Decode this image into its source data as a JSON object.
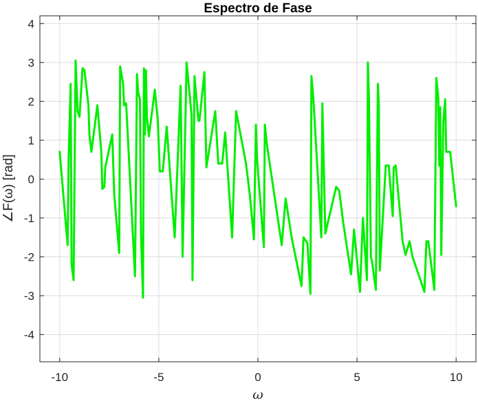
{
  "chart_data": {
    "type": "line",
    "title": "Espectro de Fase",
    "xlabel": "ω",
    "ylabel": "∠F(ω) [rad]",
    "xlim": [
      -11,
      11
    ],
    "ylim": [
      -4.7,
      4.2
    ],
    "xticks": [
      -10,
      -5,
      0,
      5,
      10
    ],
    "xtick_labels": [
      "-10",
      "-5",
      "0",
      "5",
      "10"
    ],
    "yticks": [
      -4,
      -3,
      -2,
      -1,
      0,
      1,
      2,
      3,
      4
    ],
    "ytick_labels": [
      "-4",
      "-3",
      "-2",
      "-1",
      "0",
      "1",
      "2",
      "3",
      "4"
    ],
    "grid": true,
    "colors": {
      "line": "#00ee00",
      "grid": "#dcdcdc",
      "axis": "#262626"
    },
    "series": [
      {
        "x": [
          -10.0,
          -9.6,
          -9.55,
          -9.45,
          -9.4,
          -9.3,
          -9.2,
          -9.1,
          -9.0,
          -8.85,
          -8.75,
          -8.55,
          -8.5,
          -8.4,
          -8.1,
          -7.9,
          -7.85,
          -7.75,
          -7.7,
          -7.35,
          -7.25,
          -7.0,
          -6.95,
          -6.8,
          -6.75,
          -6.65,
          -6.2,
          -6.1,
          -6.05,
          -5.95,
          -5.9,
          -5.8,
          -5.75,
          -5.7,
          -5.65,
          -5.6,
          -5.5,
          -5.2,
          -5.05,
          -4.95,
          -4.8,
          -4.6,
          -4.3,
          -4.2,
          -3.9,
          -3.8,
          -3.6,
          -3.35,
          -3.3,
          -3.2,
          -3.0,
          -2.95,
          -2.7,
          -2.6,
          -2.15,
          -2.0,
          -1.8,
          -1.65,
          -1.3,
          -1.1,
          -0.6,
          -0.4,
          -0.2,
          -0.1,
          -0.05,
          0.3,
          0.35,
          0.45,
          1.2,
          1.4,
          1.55,
          1.7,
          2.2,
          2.3,
          2.5,
          2.65,
          2.7,
          2.8,
          3.2,
          3.25,
          3.4,
          3.95,
          4.1,
          4.3,
          4.7,
          4.85,
          5.15,
          5.3,
          5.5,
          5.55,
          5.6,
          5.7,
          5.75,
          5.95,
          6.05,
          6.1,
          6.15,
          6.45,
          6.6,
          6.8,
          6.85,
          6.95,
          7.3,
          7.45,
          7.65,
          7.8,
          8.4,
          8.5,
          8.6,
          8.9,
          9.0,
          9.1,
          9.15,
          9.2,
          9.25,
          9.35,
          9.45,
          9.5,
          9.7,
          10.0
        ],
        "y": [
          0.7,
          -1.7,
          0.5,
          2.45,
          -2.2,
          -2.6,
          3.05,
          1.75,
          1.6,
          2.85,
          2.8,
          1.9,
          1.15,
          0.7,
          1.9,
          0.7,
          -0.25,
          -0.2,
          0.3,
          1.15,
          -0.4,
          -1.9,
          2.9,
          2.45,
          1.9,
          1.95,
          -2.5,
          2.7,
          2.25,
          2.05,
          -1.4,
          -3.05,
          2.85,
          1.15,
          2.8,
          1.6,
          1.1,
          2.3,
          1.5,
          0.2,
          0.2,
          1.35,
          -0.8,
          -1.5,
          2.4,
          -2.0,
          3.0,
          1.65,
          -2.6,
          2.65,
          1.5,
          1.5,
          2.75,
          0.3,
          1.75,
          0.4,
          0.4,
          1.2,
          -1.5,
          1.75,
          0.4,
          -0.45,
          -1.55,
          1.4,
          0.55,
          -1.75,
          1.4,
          0.9,
          -1.7,
          -0.5,
          -1.0,
          -1.5,
          -2.75,
          -1.5,
          -1.65,
          -2.95,
          2.65,
          2.05,
          -1.5,
          1.95,
          -1.4,
          -0.2,
          -0.3,
          -1.1,
          -2.45,
          -1.3,
          -2.9,
          -1.0,
          -2.6,
          3.0,
          2.1,
          -2.0,
          -2.1,
          -2.85,
          2.45,
          1.9,
          -2.35,
          0.35,
          0.35,
          -0.95,
          0.3,
          0.35,
          -1.6,
          -1.95,
          -1.6,
          -2.0,
          -2.9,
          -1.6,
          -1.6,
          -2.85,
          2.6,
          2.1,
          0.35,
          1.85,
          -1.95,
          1.45,
          2.05,
          0.7,
          0.7,
          -0.7
        ]
      }
    ]
  }
}
